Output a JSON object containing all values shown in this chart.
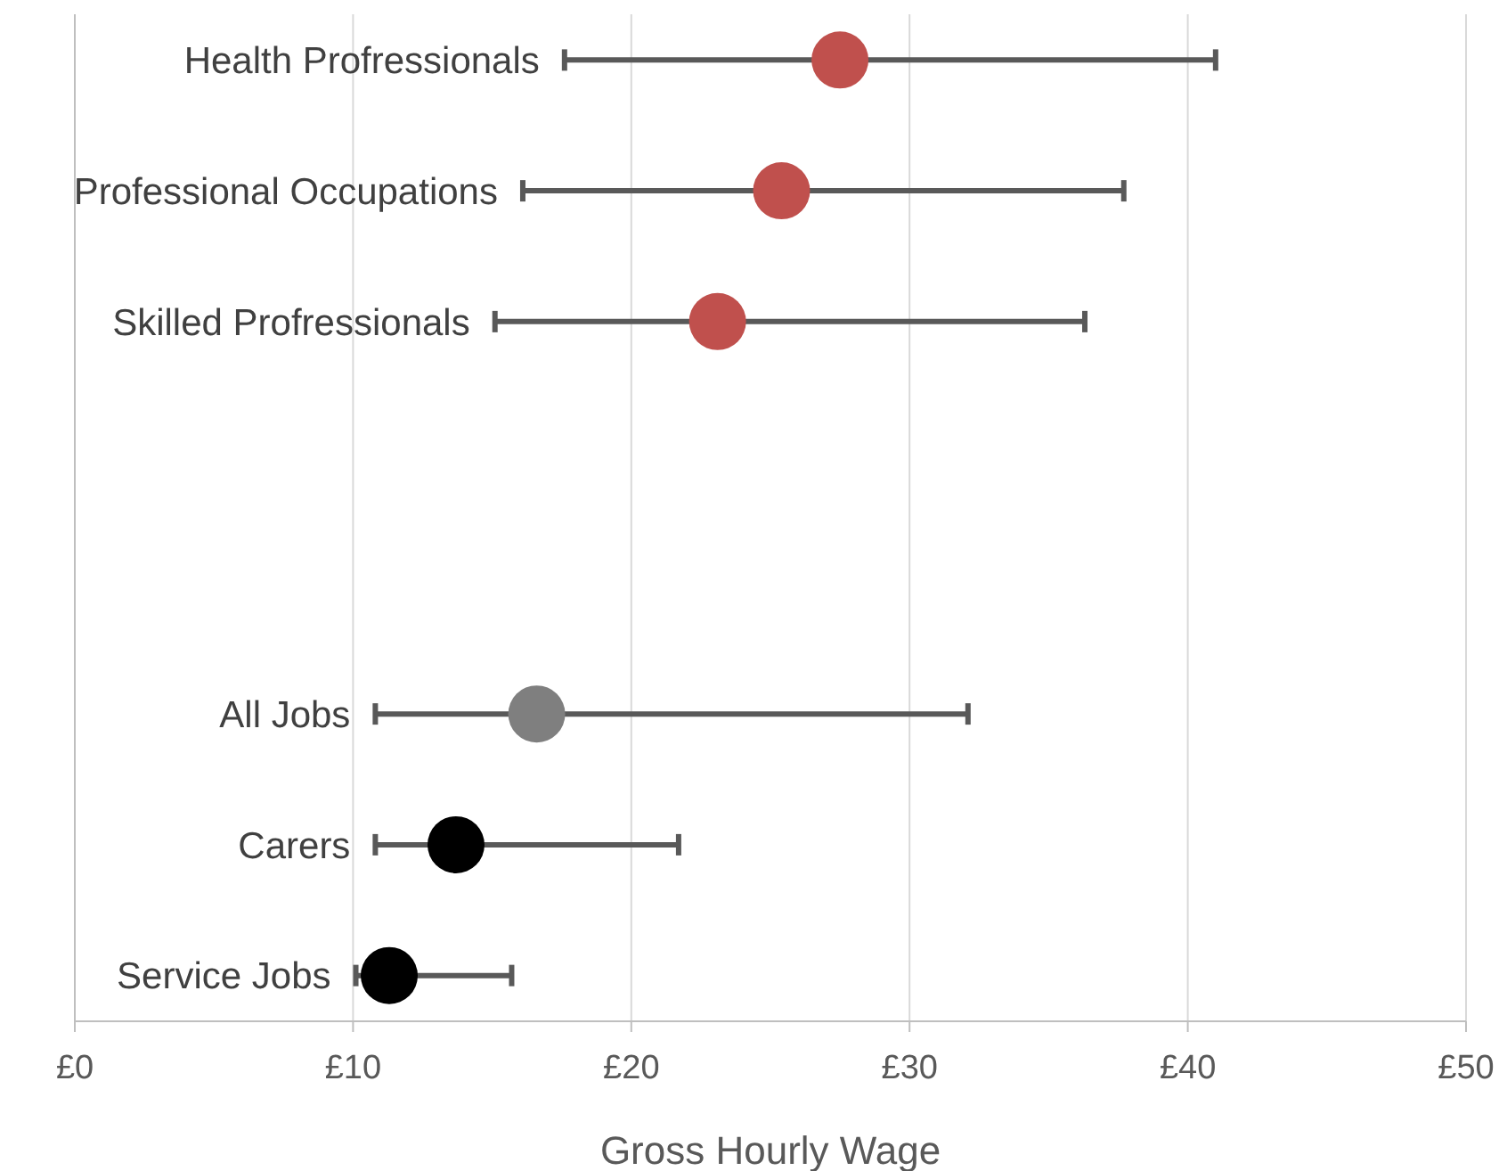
{
  "chart_data": {
    "type": "scatter",
    "orientation": "horizontal",
    "xlabel": "Gross Hourly Wage",
    "categories": [
      "Health Profressionals",
      "Professional Occupations",
      "Skilled Profressionals",
      null,
      null,
      "All Jobs",
      "Carers",
      "Service Jobs"
    ],
    "values": [
      27.5,
      25.4,
      23.1,
      null,
      null,
      16.6,
      13.7,
      11.3
    ],
    "errors": [
      [
        17.6,
        41.0
      ],
      [
        16.1,
        37.7
      ],
      [
        15.1,
        36.3
      ],
      null,
      null,
      [
        10.8,
        32.1
      ],
      [
        10.8,
        21.7
      ],
      [
        10.1,
        15.7
      ]
    ],
    "colors": [
      "#c0504d",
      "#c0504d",
      "#c0504d",
      "#c0504d",
      "#c0504d",
      "#7f7f7f",
      "#000000",
      "#000000"
    ],
    "xlim": [
      0,
      50
    ],
    "xticks": [
      {
        "value": 0,
        "label": "£0"
      },
      {
        "value": 10,
        "label": "£10"
      },
      {
        "value": 20,
        "label": "£20"
      },
      {
        "value": 30,
        "label": "£30"
      },
      {
        "value": 40,
        "label": "£40"
      },
      {
        "value": 50,
        "label": "£50"
      }
    ],
    "grid": "x",
    "marker": "circle"
  }
}
